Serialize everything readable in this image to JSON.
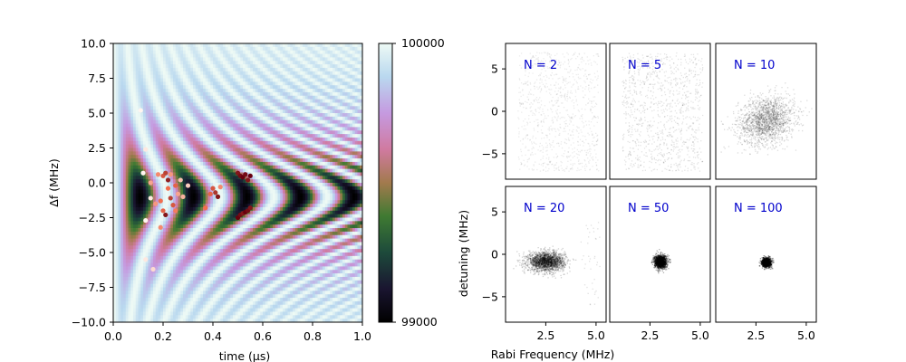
{
  "chart_data": [
    {
      "type": "heatmap",
      "xlabel": "time (μs)",
      "ylabel": "Δf (MHz)",
      "xlim": [
        0.0,
        1.0
      ],
      "ylim": [
        -10.0,
        10.0
      ],
      "xticks": [
        "0.0",
        "0.2",
        "0.4",
        "0.6",
        "0.8",
        "1.0"
      ],
      "yticks": [
        "10.0",
        "7.5",
        "5.0",
        "2.5",
        "0.0",
        "−2.5",
        "−5.0",
        "−7.5",
        "−10.0"
      ],
      "colorbar": {
        "min": 99000,
        "max": 100000,
        "tick_labels": [
          "100000",
          "99000"
        ],
        "colormap": "cubehelix-like"
      },
      "overlay_points": [
        {
          "x": 0.12,
          "y": 0.7,
          "c": 0.0
        },
        {
          "x": 0.13,
          "y": -2.7,
          "c": 0.0
        },
        {
          "x": 0.15,
          "y": -1.1,
          "c": 0.05
        },
        {
          "x": 0.13,
          "y": 2.4,
          "c": 0.05
        },
        {
          "x": 0.11,
          "y": 5.2,
          "c": 0.0
        },
        {
          "x": 0.13,
          "y": -5.5,
          "c": 0.05
        },
        {
          "x": 0.16,
          "y": -6.2,
          "c": 0.1
        },
        {
          "x": 0.15,
          "y": 0.0,
          "c": 0.3
        },
        {
          "x": 0.18,
          "y": 0.6,
          "c": 0.4
        },
        {
          "x": 0.19,
          "y": -1.3,
          "c": 0.5
        },
        {
          "x": 0.2,
          "y": -2.0,
          "c": 0.55
        },
        {
          "x": 0.2,
          "y": 0.5,
          "c": 0.6
        },
        {
          "x": 0.21,
          "y": 0.7,
          "c": 0.7
        },
        {
          "x": 0.21,
          "y": -2.3,
          "c": 0.9
        },
        {
          "x": 0.22,
          "y": -0.4,
          "c": 0.5
        },
        {
          "x": 0.23,
          "y": 0.6,
          "c": 0.35
        },
        {
          "x": 0.24,
          "y": -1.6,
          "c": 0.6
        },
        {
          "x": 0.25,
          "y": -2.0,
          "c": 0.45
        },
        {
          "x": 0.25,
          "y": -0.2,
          "c": 0.55
        },
        {
          "x": 0.19,
          "y": -3.2,
          "c": 0.4
        },
        {
          "x": 0.26,
          "y": -0.8,
          "c": 0.3
        },
        {
          "x": 0.28,
          "y": -1.0,
          "c": 0.25
        },
        {
          "x": 0.27,
          "y": 0.2,
          "c": 0.2
        },
        {
          "x": 0.3,
          "y": -0.2,
          "c": 0.15
        },
        {
          "x": 0.17,
          "y": -1.5,
          "c": 0.35
        },
        {
          "x": 0.23,
          "y": -1.1,
          "c": 0.7
        },
        {
          "x": 0.22,
          "y": 0.2,
          "c": 0.85
        },
        {
          "x": 0.37,
          "y": -1.8,
          "c": 0.5
        },
        {
          "x": 0.39,
          "y": -0.8,
          "c": 0.55
        },
        {
          "x": 0.41,
          "y": -0.7,
          "c": 0.75
        },
        {
          "x": 0.42,
          "y": -1.0,
          "c": 0.9
        },
        {
          "x": 0.4,
          "y": -0.4,
          "c": 0.6
        },
        {
          "x": 0.43,
          "y": -0.3,
          "c": 0.4
        },
        {
          "x": 0.5,
          "y": 0.7,
          "c": 0.9
        },
        {
          "x": 0.51,
          "y": 0.5,
          "c": 0.95
        },
        {
          "x": 0.52,
          "y": 0.4,
          "c": 1.0
        },
        {
          "x": 0.53,
          "y": 0.6,
          "c": 0.95
        },
        {
          "x": 0.54,
          "y": 0.2,
          "c": 0.9
        },
        {
          "x": 0.55,
          "y": 0.5,
          "c": 1.0
        },
        {
          "x": 0.5,
          "y": -2.5,
          "c": 1.0
        },
        {
          "x": 0.51,
          "y": -2.3,
          "c": 0.95
        },
        {
          "x": 0.52,
          "y": -2.2,
          "c": 0.9
        },
        {
          "x": 0.53,
          "y": -2.1,
          "c": 1.0
        },
        {
          "x": 0.54,
          "y": -2.0,
          "c": 0.95
        },
        {
          "x": 0.55,
          "y": -1.8,
          "c": 0.9
        }
      ]
    },
    {
      "type": "scatter",
      "shared_xlabel": "Rabi Frequency (MHz)",
      "shared_ylabel": "detuning (MHz)",
      "xlim": [
        0.5,
        5.5
      ],
      "ylim": [
        -8,
        8
      ],
      "xticks": [
        "2.5",
        "5.0"
      ],
      "yticks": [
        "5",
        "0",
        "−5"
      ],
      "panels": [
        {
          "label": "N = 2",
          "cx": 3.0,
          "cy": 0.0,
          "sx": 1.2,
          "sy": 4.0,
          "count": 900,
          "alpha": 0.08,
          "uniform": true
        },
        {
          "label": "N = 5",
          "cx": 3.0,
          "cy": 0.0,
          "sx": 1.2,
          "sy": 4.0,
          "count": 1000,
          "alpha": 0.11,
          "uniform": true
        },
        {
          "label": "N = 10",
          "cx": 3.0,
          "cy": -1.0,
          "sx": 0.7,
          "sy": 1.4,
          "count": 1800,
          "alpha": 0.14,
          "uniform": false
        },
        {
          "label": "N = 20",
          "cx": 2.5,
          "cy": -0.8,
          "sx": 0.45,
          "sy": 0.55,
          "count": 2200,
          "alpha": 0.18,
          "uniform": false
        },
        {
          "label": "N = 50",
          "cx": 3.0,
          "cy": -0.8,
          "sx": 0.15,
          "sy": 0.38,
          "count": 1500,
          "alpha": 0.3,
          "uniform": false
        },
        {
          "label": "N = 100",
          "cx": 3.0,
          "cy": -0.9,
          "sx": 0.11,
          "sy": 0.25,
          "count": 1200,
          "alpha": 0.38,
          "uniform": false
        }
      ]
    }
  ]
}
